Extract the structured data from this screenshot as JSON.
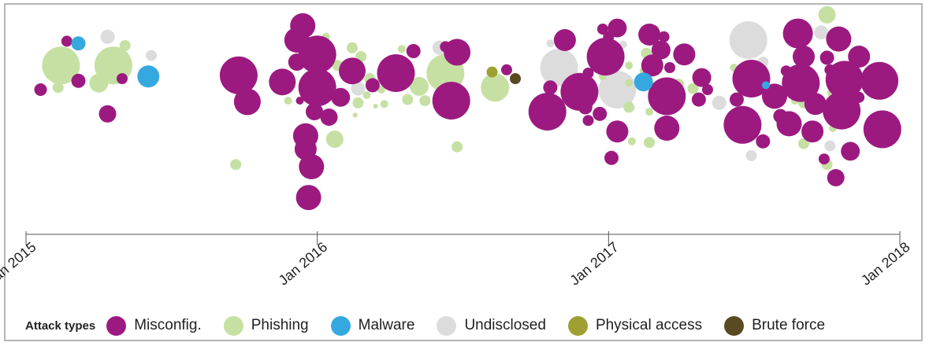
{
  "chart_data": {
    "type": "scatter",
    "subtype": "bubble-timeline",
    "title": "",
    "xlabel": "",
    "ylabel": "",
    "x_axis": {
      "ticks": [
        "Jan 2015",
        "Jan 2016",
        "Jan 2017",
        "Jan 2018"
      ],
      "range": [
        "2015-01",
        "2018-01"
      ]
    },
    "legend": {
      "title": "Attack types",
      "placement": "bottom",
      "items": [
        {
          "key": "misconfig",
          "label": "Misconfig.",
          "color": "#9c1a80"
        },
        {
          "key": "phishing",
          "label": "Phishing",
          "color": "#c6e0a3"
        },
        {
          "key": "malware",
          "label": "Malware",
          "color": "#36a8e0"
        },
        {
          "key": "undisclosed",
          "label": "Undisclosed",
          "color": "#dcdcdc"
        },
        {
          "key": "physical",
          "label": "Physical access",
          "color": "#9ea131"
        },
        {
          "key": "brute",
          "label": "Brute force",
          "color": "#5a4a22"
        }
      ]
    },
    "bubbles": [
      {
        "t": "m",
        "x": 2015.05,
        "y": 40,
        "r": 8
      },
      {
        "t": "m",
        "x": 2015.14,
        "y": 84,
        "r": 7
      },
      {
        "t": "m",
        "x": 2015.18,
        "y": 48,
        "r": 9
      },
      {
        "t": "m",
        "x": 2015.28,
        "y": 18,
        "r": 11
      },
      {
        "t": "m",
        "x": 2015.33,
        "y": 50,
        "r": 7
      },
      {
        "t": "p",
        "x": 2015.12,
        "y": 62,
        "r": 24
      },
      {
        "t": "p",
        "x": 2015.3,
        "y": 62,
        "r": 24
      },
      {
        "t": "p",
        "x": 2015.11,
        "y": 42,
        "r": 7
      },
      {
        "t": "p",
        "x": 2015.25,
        "y": 46,
        "r": 12
      },
      {
        "t": "p",
        "x": 2015.34,
        "y": 80,
        "r": 7
      },
      {
        "t": "w",
        "x": 2015.18,
        "y": 82,
        "r": 9
      },
      {
        "t": "w",
        "x": 2015.42,
        "y": 52,
        "r": 14
      },
      {
        "t": "u",
        "x": 2015.28,
        "y": 88,
        "r": 9
      },
      {
        "t": "u",
        "x": 2015.43,
        "y": 71,
        "r": 7
      },
      {
        "t": "m",
        "x": 2015.73,
        "y": 53,
        "r": 24
      },
      {
        "t": "m",
        "x": 2015.76,
        "y": 29,
        "r": 17
      },
      {
        "t": "m",
        "x": 2015.88,
        "y": 47,
        "r": 17
      },
      {
        "t": "m",
        "x": 2015.93,
        "y": 65,
        "r": 11
      },
      {
        "t": "m",
        "x": 2015.95,
        "y": 98,
        "r": 16
      },
      {
        "t": "m",
        "x": 2015.93,
        "y": 85,
        "r": 16
      },
      {
        "t": "m",
        "x": 2016.0,
        "y": 72,
        "r": 24
      },
      {
        "t": "m",
        "x": 2016.0,
        "y": 42,
        "r": 24
      },
      {
        "t": "m",
        "x": 2016.08,
        "y": 33,
        "r": 12
      },
      {
        "t": "m",
        "x": 2015.99,
        "y": 20,
        "r": 11
      },
      {
        "t": "m",
        "x": 2015.96,
        "y": -2,
        "r": 16
      },
      {
        "t": "m",
        "x": 2015.96,
        "y": -14,
        "r": 14
      },
      {
        "t": "m",
        "x": 2015.98,
        "y": -30,
        "r": 16
      },
      {
        "t": "m",
        "x": 2015.97,
        "y": -58,
        "r": 16
      },
      {
        "t": "m",
        "x": 2016.04,
        "y": 15,
        "r": 11
      },
      {
        "t": "m",
        "x": 2015.94,
        "y": 30,
        "r": 5
      },
      {
        "t": "m",
        "x": 2016.12,
        "y": 57,
        "r": 17
      },
      {
        "t": "m",
        "x": 2016.19,
        "y": 44,
        "r": 9
      },
      {
        "t": "m",
        "x": 2016.27,
        "y": 55,
        "r": 24
      },
      {
        "t": "m",
        "x": 2016.33,
        "y": 75,
        "r": 9
      },
      {
        "t": "m",
        "x": 2016.44,
        "y": 79,
        "r": 7
      },
      {
        "t": "m",
        "x": 2016.48,
        "y": 74,
        "r": 17
      },
      {
        "t": "m",
        "x": 2016.46,
        "y": 30,
        "r": 24
      },
      {
        "t": "p",
        "x": 2015.85,
        "y": 48,
        "r": 5
      },
      {
        "t": "p",
        "x": 2015.9,
        "y": 30,
        "r": 5
      },
      {
        "t": "p",
        "x": 2015.72,
        "y": -28,
        "r": 7
      },
      {
        "t": "p",
        "x": 2016.06,
        "y": -5,
        "r": 11
      },
      {
        "t": "p",
        "x": 2016.07,
        "y": 62,
        "r": 7
      },
      {
        "t": "p",
        "x": 2016.12,
        "y": 78,
        "r": 7
      },
      {
        "t": "p",
        "x": 2016.15,
        "y": 70,
        "r": 7
      },
      {
        "t": "p",
        "x": 2016.18,
        "y": 50,
        "r": 7
      },
      {
        "t": "p",
        "x": 2016.14,
        "y": 28,
        "r": 7
      },
      {
        "t": "p",
        "x": 2016.17,
        "y": 35,
        "r": 5
      },
      {
        "t": "p",
        "x": 2016.23,
        "y": 27,
        "r": 5
      },
      {
        "t": "p",
        "x": 2016.22,
        "y": 40,
        "r": 5
      },
      {
        "t": "p",
        "x": 2016.26,
        "y": 54,
        "r": 5
      },
      {
        "t": "p",
        "x": 2016.35,
        "y": 43,
        "r": 12
      },
      {
        "t": "p",
        "x": 2016.31,
        "y": 31,
        "r": 7
      },
      {
        "t": "p",
        "x": 2016.37,
        "y": 30,
        "r": 7
      },
      {
        "t": "p",
        "x": 2016.44,
        "y": 55,
        "r": 24
      },
      {
        "t": "p",
        "x": 2016.48,
        "y": -12,
        "r": 7
      },
      {
        "t": "p",
        "x": 2016.04,
        "y": 48,
        "r": 5
      },
      {
        "t": "p",
        "x": 2016.03,
        "y": 88,
        "r": 5
      },
      {
        "t": "p",
        "x": 2016.29,
        "y": 77,
        "r": 5
      },
      {
        "t": "p",
        "x": 2016.13,
        "y": 17,
        "r": 3
      },
      {
        "t": "p",
        "x": 2016.2,
        "y": 25,
        "r": 3
      },
      {
        "t": "u",
        "x": 2016.14,
        "y": 41,
        "r": 9
      },
      {
        "t": "u",
        "x": 2016.42,
        "y": 78,
        "r": 9
      },
      {
        "t": "u",
        "x": 2016.22,
        "y": 50,
        "r": 5
      },
      {
        "t": "m",
        "x": 2016.65,
        "y": 58,
        "r": 7
      },
      {
        "t": "p",
        "x": 2016.61,
        "y": 42,
        "r": 18
      },
      {
        "t": "y",
        "x": 2016.6,
        "y": 56,
        "r": 7
      },
      {
        "t": "b",
        "x": 2016.68,
        "y": 50,
        "r": 7
      },
      {
        "t": "m",
        "x": 2016.79,
        "y": 20,
        "r": 24
      },
      {
        "t": "m",
        "x": 2016.8,
        "y": 42,
        "r": 9
      },
      {
        "t": "m",
        "x": 2016.85,
        "y": 85,
        "r": 14
      },
      {
        "t": "m",
        "x": 2016.9,
        "y": 38,
        "r": 24
      },
      {
        "t": "m",
        "x": 2016.93,
        "y": 55,
        "r": 7
      },
      {
        "t": "m",
        "x": 2016.92,
        "y": 24,
        "r": 9
      },
      {
        "t": "m",
        "x": 2016.93,
        "y": 12,
        "r": 7
      },
      {
        "t": "m",
        "x": 2016.97,
        "y": 18,
        "r": 9
      },
      {
        "t": "m",
        "x": 2016.99,
        "y": 70,
        "r": 24
      },
      {
        "t": "m",
        "x": 2016.98,
        "y": 95,
        "r": 7
      },
      {
        "t": "m",
        "x": 2017.0,
        "y": 88,
        "r": 7
      },
      {
        "t": "m",
        "x": 2017.03,
        "y": 96,
        "r": 12
      },
      {
        "t": "m",
        "x": 2017.03,
        "y": 2,
        "r": 14
      },
      {
        "t": "m",
        "x": 2017.01,
        "y": -22,
        "r": 9
      },
      {
        "t": "m",
        "x": 2017.14,
        "y": 90,
        "r": 14
      },
      {
        "t": "m",
        "x": 2017.18,
        "y": 76,
        "r": 12
      },
      {
        "t": "m",
        "x": 2017.19,
        "y": 88,
        "r": 7
      },
      {
        "t": "m",
        "x": 2017.15,
        "y": 62,
        "r": 14
      },
      {
        "t": "m",
        "x": 2017.21,
        "y": 60,
        "r": 7
      },
      {
        "t": "m",
        "x": 2017.26,
        "y": 72,
        "r": 14
      },
      {
        "t": "m",
        "x": 2017.2,
        "y": 34,
        "r": 24
      },
      {
        "t": "m",
        "x": 2017.2,
        "y": 5,
        "r": 16
      },
      {
        "t": "m",
        "x": 2017.32,
        "y": 51,
        "r": 12
      },
      {
        "t": "m",
        "x": 2017.31,
        "y": 31,
        "r": 9
      },
      {
        "t": "m",
        "x": 2017.34,
        "y": 40,
        "r": 7
      },
      {
        "t": "p",
        "x": 2017.07,
        "y": 46,
        "r": 5
      },
      {
        "t": "p",
        "x": 2017.07,
        "y": 62,
        "r": 5
      },
      {
        "t": "p",
        "x": 2017.13,
        "y": 73,
        "r": 7
      },
      {
        "t": "p",
        "x": 2017.12,
        "y": 50,
        "r": 7
      },
      {
        "t": "p",
        "x": 2017.16,
        "y": 95,
        "r": 5
      },
      {
        "t": "p",
        "x": 2017.24,
        "y": 45,
        "r": 7
      },
      {
        "t": "p",
        "x": 2017.29,
        "y": 41,
        "r": 7
      },
      {
        "t": "p",
        "x": 2017.14,
        "y": 20,
        "r": 5
      },
      {
        "t": "p",
        "x": 2017.07,
        "y": 24,
        "r": 7
      },
      {
        "t": "p",
        "x": 2017.14,
        "y": -8,
        "r": 7
      },
      {
        "t": "p",
        "x": 2017.08,
        "y": -7,
        "r": 5
      },
      {
        "t": "p",
        "x": 2016.98,
        "y": 52,
        "r": 5
      },
      {
        "t": "p",
        "x": 2017.12,
        "y": 57,
        "r": 5
      },
      {
        "t": "u",
        "x": 2016.83,
        "y": 60,
        "r": 24
      },
      {
        "t": "u",
        "x": 2017.03,
        "y": 40,
        "r": 24
      },
      {
        "t": "u",
        "x": 2016.8,
        "y": 82,
        "r": 5
      },
      {
        "t": "u",
        "x": 2017.05,
        "y": 81,
        "r": 5
      },
      {
        "t": "u",
        "x": 2017.02,
        "y": 62,
        "r": 5
      },
      {
        "t": "w",
        "x": 2017.12,
        "y": 47,
        "r": 12
      },
      {
        "t": "m",
        "x": 2017.44,
        "y": 31,
        "r": 9
      },
      {
        "t": "m",
        "x": 2017.49,
        "y": 50,
        "r": 24
      },
      {
        "t": "m",
        "x": 2017.46,
        "y": 8,
        "r": 24
      },
      {
        "t": "m",
        "x": 2017.53,
        "y": -7,
        "r": 9
      },
      {
        "t": "m",
        "x": 2017.57,
        "y": 34,
        "r": 16
      },
      {
        "t": "m",
        "x": 2017.59,
        "y": 16,
        "r": 9
      },
      {
        "t": "m",
        "x": 2017.61,
        "y": 57,
        "r": 7
      },
      {
        "t": "m",
        "x": 2017.65,
        "y": 91,
        "r": 19
      },
      {
        "t": "m",
        "x": 2017.67,
        "y": 70,
        "r": 14
      },
      {
        "t": "m",
        "x": 2017.66,
        "y": 46,
        "r": 24
      },
      {
        "t": "m",
        "x": 2017.62,
        "y": 9,
        "r": 16
      },
      {
        "t": "m",
        "x": 2017.71,
        "y": 27,
        "r": 14
      },
      {
        "t": "m",
        "x": 2017.7,
        "y": 2,
        "r": 14
      },
      {
        "t": "m",
        "x": 2017.74,
        "y": -23,
        "r": 7
      },
      {
        "t": "m",
        "x": 2017.75,
        "y": 69,
        "r": 9
      },
      {
        "t": "m",
        "x": 2017.76,
        "y": 58,
        "r": 7
      },
      {
        "t": "m",
        "x": 2017.79,
        "y": 86,
        "r": 16
      },
      {
        "t": "m",
        "x": 2017.81,
        "y": 49,
        "r": 24
      },
      {
        "t": "m",
        "x": 2017.8,
        "y": 21,
        "r": 24
      },
      {
        "t": "m",
        "x": 2017.86,
        "y": 70,
        "r": 14
      },
      {
        "t": "m",
        "x": 2017.86,
        "y": 33,
        "r": 7
      },
      {
        "t": "m",
        "x": 2017.93,
        "y": 48,
        "r": 24
      },
      {
        "t": "m",
        "x": 2017.94,
        "y": 4,
        "r": 24
      },
      {
        "t": "m",
        "x": 2017.83,
        "y": -16,
        "r": 12
      },
      {
        "t": "m",
        "x": 2017.78,
        "y": -40,
        "r": 11
      },
      {
        "t": "m",
        "x": 2017.78,
        "y": 80,
        "r": 3
      },
      {
        "t": "p",
        "x": 2017.75,
        "y": 108,
        "r": 11
      },
      {
        "t": "p",
        "x": 2017.43,
        "y": 60,
        "r": 5
      },
      {
        "t": "p",
        "x": 2017.53,
        "y": 54,
        "r": 7
      },
      {
        "t": "p",
        "x": 2017.67,
        "y": 28,
        "r": 7
      },
      {
        "t": "p",
        "x": 2017.77,
        "y": 37,
        "r": 7
      },
      {
        "t": "p",
        "x": 2017.67,
        "y": -9,
        "r": 7
      },
      {
        "t": "p",
        "x": 2017.75,
        "y": -28,
        "r": 7
      },
      {
        "t": "p",
        "x": 2017.64,
        "y": 30,
        "r": 5
      },
      {
        "t": "p",
        "x": 2017.77,
        "y": 5,
        "r": 5
      },
      {
        "t": "u",
        "x": 2017.48,
        "y": 85,
        "r": 24
      },
      {
        "t": "u",
        "x": 2017.38,
        "y": 28,
        "r": 9
      },
      {
        "t": "u",
        "x": 2017.53,
        "y": 65,
        "r": 7
      },
      {
        "t": "u",
        "x": 2017.49,
        "y": -20,
        "r": 7
      },
      {
        "t": "u",
        "x": 2017.73,
        "y": 92,
        "r": 9
      },
      {
        "t": "u",
        "x": 2017.76,
        "y": -11,
        "r": 7
      },
      {
        "t": "u",
        "x": 2017.82,
        "y": 58,
        "r": 5
      },
      {
        "t": "u",
        "x": 2017.69,
        "y": 30,
        "r": 5
      },
      {
        "t": "w",
        "x": 2017.54,
        "y": 44,
        "r": 5
      }
    ]
  }
}
